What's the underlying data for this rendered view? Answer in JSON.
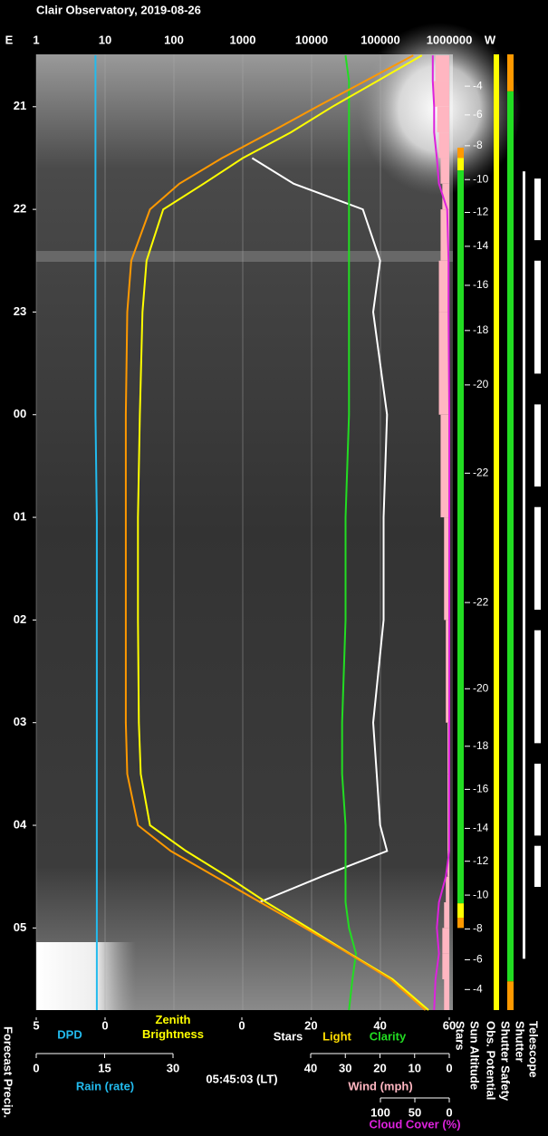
{
  "chart_data": {
    "type": "line",
    "title": "Clair Observatory, 2019-08-26",
    "east": "E",
    "west": "W",
    "timestamp": "05:45:03 (LT)",
    "forecast_label": "Forecast Precip.",
    "times": [
      20.5,
      20.75,
      21,
      21.25,
      21.5,
      21.75,
      22,
      22.5,
      23,
      24,
      25,
      26,
      27,
      27.5,
      28,
      28.25,
      28.5,
      28.75,
      29,
      29.25,
      29.5,
      29.8
    ],
    "time_lim": [
      20.49,
      29.8
    ],
    "time_ticks": [
      21,
      22,
      23,
      {
        "value": 24,
        "label": "00"
      },
      {
        "value": 25,
        "label": "01"
      },
      {
        "value": 26,
        "label": "02"
      },
      {
        "value": 27,
        "label": "03"
      },
      {
        "value": 28,
        "label": "04"
      },
      {
        "value": 29,
        "label": "05"
      }
    ],
    "top_axis": {
      "log": true,
      "grid": true,
      "lim": [
        1,
        1000000
      ],
      "ticks": [
        1,
        10,
        100,
        1000,
        10000,
        100000,
        1000000
      ],
      "series": [
        {
          "name": "Zenith Brightness",
          "color": "#ffff00",
          "values": [
            400000,
            90000,
            20000,
            5000,
            1000,
            270,
            70,
            40,
            35,
            32,
            30,
            30,
            31,
            33,
            45,
            150,
            600,
            2200,
            9000,
            36000,
            150000,
            500000
          ]
        },
        {
          "color": "#ff9900",
          "values": [
            300000,
            60000,
            12000,
            2500,
            500,
            120,
            45,
            24,
            21,
            20,
            20,
            20,
            20,
            21,
            30,
            90,
            400,
            1800,
            8000,
            35000,
            140000,
            450000
          ]
        }
      ]
    },
    "axes": [
      {
        "lim": [
          5,
          0
        ],
        "ticks": [
          5,
          0
        ],
        "labels": [],
        "series": [
          {
            "name": "DPD",
            "color": "#22bbee",
            "values": [
              0.7,
              0.7,
              0.7,
              0.7,
              0.7,
              0.7,
              0.7,
              0.7,
              0.7,
              0.7,
              0.6,
              0.6,
              0.6,
              0.6,
              0.6,
              0.6,
              0.6,
              0.6,
              0.6,
              0.6,
              0.6,
              0.6
            ]
          }
        ]
      },
      {
        "lim": [
          0,
          60
        ],
        "ticks": [
          0,
          20,
          40,
          60
        ],
        "labels": [
          {
            "text": "Light",
            "color": "#ffdd00"
          }
        ],
        "series": [
          {
            "name": "Stars",
            "color": "#ffffff",
            "values": [
              null,
              null,
              null,
              null,
              3,
              15,
              35,
              40,
              38,
              42,
              41,
              41,
              38,
              39,
              40,
              42,
              23,
              5,
              null,
              null,
              null,
              null
            ]
          },
          {
            "name": "Clarity",
            "color": "#22dd22",
            "values": [
              30,
              31,
              31,
              31,
              31,
              31,
              31,
              31,
              31,
              31,
              30,
              30,
              29,
              29,
              30,
              30,
              30,
              30,
              31,
              33,
              32,
              31
            ]
          }
        ]
      },
      {
        "lim": [
          0,
          30
        ],
        "ticks": [
          0,
          15,
          30
        ],
        "labels": [
          {
            "text": "Rain (rate)",
            "color": "#22bbee"
          }
        ],
        "series": []
      },
      {
        "lim": [
          40,
          0
        ],
        "ticks": [
          40,
          30,
          20,
          10,
          0
        ],
        "labels": [],
        "series": [
          {
            "name": "Wind (mph)",
            "color": "#ffb6c1",
            "area": true,
            "values": [
              4,
              4.5,
              3.5,
              3,
              2.5,
              2,
              2.5,
              3,
              3,
              2.5,
              1.5,
              1,
              0.5,
              0.5,
              0.5,
              0.5,
              1,
              1.5,
              2,
              2,
              1.5,
              1.5
            ]
          }
        ]
      },
      {
        "lim": [
          100,
          0
        ],
        "ticks": [
          100,
          50,
          0
        ],
        "labels": [],
        "series": [
          {
            "name": "Cloud Cover (%)",
            "color": "#dd22dd",
            "values": [
              24,
              24,
              22,
              22,
              18,
              15,
              3,
              1,
              1,
              0,
              0,
              0,
              0,
              0,
              0,
              0,
              5,
              15,
              18,
              15,
              20,
              22
            ]
          }
        ]
      }
    ],
    "status": [
      {
        "name": "Stars",
        "segments": [
          {
            "start": 21.4,
            "end": 21.5,
            "color": "#ff9900"
          },
          {
            "start": 21.5,
            "end": 21.62,
            "color": "#ffff00"
          },
          {
            "start": 21.62,
            "end": 28.76,
            "color": "#22dd22"
          },
          {
            "start": 28.76,
            "end": 28.9,
            "color": "#ffff00"
          },
          {
            "start": 28.9,
            "end": 29.0,
            "color": "#ff9900"
          }
        ]
      },
      {
        "name": "Sun Altitude",
        "ticks": [
          {
            "time": 20.8,
            "altitude": -4
          },
          {
            "time": 21.08,
            "altitude": -6
          },
          {
            "time": 21.38,
            "altitude": -8
          },
          {
            "time": 21.71,
            "altitude": -10
          },
          {
            "time": 22.03,
            "altitude": -12
          },
          {
            "time": 22.36,
            "altitude": -14
          },
          {
            "time": 22.74,
            "altitude": -16
          },
          {
            "time": 23.18,
            "altitude": -18
          },
          {
            "time": 23.71,
            "altitude": -20
          },
          {
            "time": 24.57,
            "altitude": -22
          },
          {
            "time": 25.83,
            "altitude": -22
          },
          {
            "time": 26.67,
            "altitude": -20
          },
          {
            "time": 27.23,
            "altitude": -18
          },
          {
            "time": 27.65,
            "altitude": -16
          },
          {
            "time": 28.03,
            "altitude": -14
          },
          {
            "time": 28.35,
            "altitude": -12
          },
          {
            "time": 28.68,
            "altitude": -10
          },
          {
            "time": 29.01,
            "altitude": -8
          },
          {
            "time": 29.31,
            "altitude": -6
          },
          {
            "time": 29.6,
            "altitude": -4
          }
        ]
      },
      {
        "name": "Obs. Potential",
        "segments": [
          {
            "start": 20.49,
            "end": 29.8,
            "color": "#ffff00"
          }
        ]
      },
      {
        "name": "Shutter Safety",
        "segments": [
          {
            "start": 20.49,
            "end": 20.85,
            "color": "#ff9900"
          },
          {
            "start": 20.85,
            "end": 29.52,
            "color": "#22dd22"
          },
          {
            "start": 29.52,
            "end": 29.8,
            "color": "#ff9900"
          }
        ]
      },
      {
        "name": "Shutter",
        "segments": [
          {
            "start": 21.63,
            "end": 29.3,
            "color": "#ffffff"
          }
        ]
      },
      {
        "name": "Telescope",
        "segments": [
          {
            "start": 21.7,
            "end": 22.3,
            "color": "#ffffff"
          },
          {
            "start": 22.5,
            "end": 23.6,
            "color": "#ffffff"
          },
          {
            "start": 23.9,
            "end": 24.7,
            "color": "#ffffff"
          },
          {
            "start": 24.9,
            "end": 25.9,
            "color": "#ffffff"
          },
          {
            "start": 26.1,
            "end": 27.2,
            "color": "#ffffff"
          },
          {
            "start": 27.4,
            "end": 28.1,
            "color": "#ffffff"
          },
          {
            "start": 28.2,
            "end": 28.6,
            "color": "#ffffff"
          }
        ]
      }
    ]
  }
}
